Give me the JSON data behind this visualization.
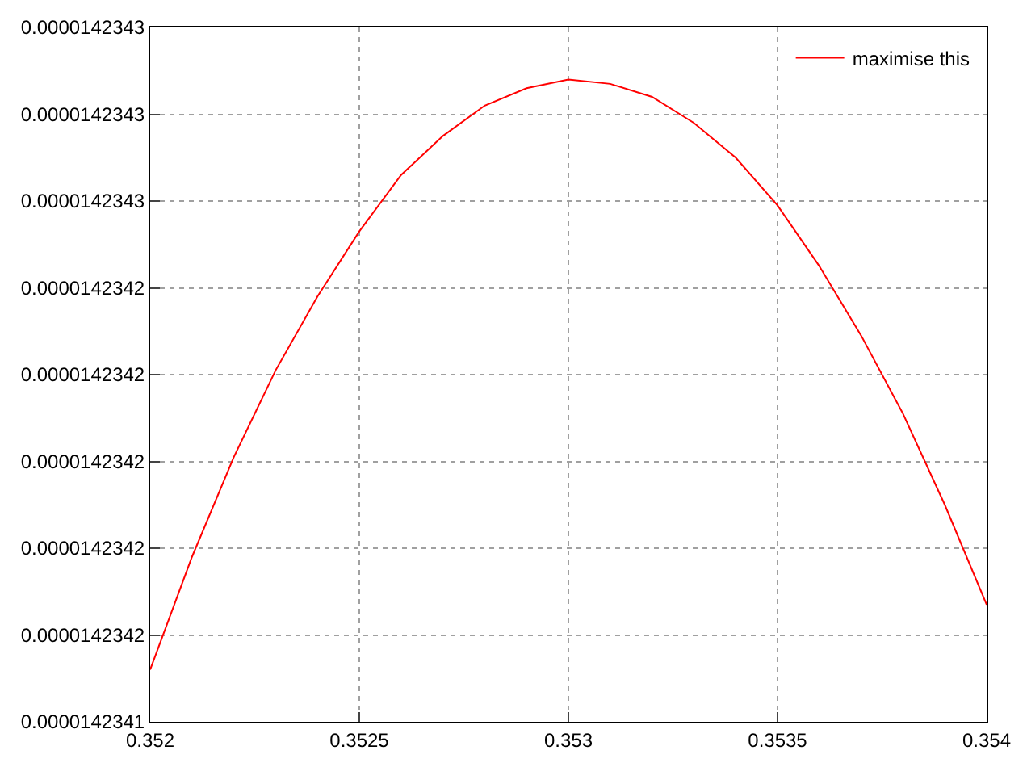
{
  "chart_data": {
    "type": "line",
    "x": [
      0.352,
      0.3521,
      0.3522,
      0.3523,
      0.3524,
      0.3525,
      0.3526,
      0.3527,
      0.3528,
      0.3529,
      0.353,
      0.3531,
      0.3532,
      0.3533,
      0.3534,
      0.3535,
      0.3536,
      0.3537,
      0.3538,
      0.3539,
      0.354
    ],
    "series": [
      {
        "name": "maximise this",
        "color": "#ff0000",
        "values": [
          1.4234152e-05,
          1.4234178e-05,
          1.4234201e-05,
          1.4234221e-05,
          1.4234238e-05,
          1.4234253e-05,
          1.4234266e-05,
          1.4234275e-05,
          1.4234282e-05,
          1.4234286e-05,
          1.4234288e-05,
          1.4234287e-05,
          1.4234284e-05,
          1.4234278e-05,
          1.423427e-05,
          1.4234259e-05,
          1.4234245e-05,
          1.4234229e-05,
          1.4234211e-05,
          1.423419e-05,
          1.4234167e-05
        ]
      }
    ],
    "xlim": [
      0.352,
      0.354
    ],
    "xticks": [
      0.352,
      0.3525,
      0.353,
      0.3535,
      0.354
    ],
    "ylim": [
      1.423414e-05,
      1.42343e-05
    ],
    "yticks": [
      {
        "value": 1.423414e-05,
        "label": "0.0000142341"
      },
      {
        "value": 1.423416e-05,
        "label": "0.0000142342"
      },
      {
        "value": 1.423418e-05,
        "label": "0.0000142342"
      },
      {
        "value": 1.42342e-05,
        "label": "0.0000142342"
      },
      {
        "value": 1.423422e-05,
        "label": "0.0000142342"
      },
      {
        "value": 1.423424e-05,
        "label": "0.0000142342"
      },
      {
        "value": 1.423426e-05,
        "label": "0.0000142343"
      },
      {
        "value": 1.423428e-05,
        "label": "0.0000142343"
      },
      {
        "value": 1.42343e-05,
        "label": "0.0000142343"
      }
    ],
    "grid": true,
    "legend": "top right",
    "marker": "none",
    "line_style": "solid"
  }
}
